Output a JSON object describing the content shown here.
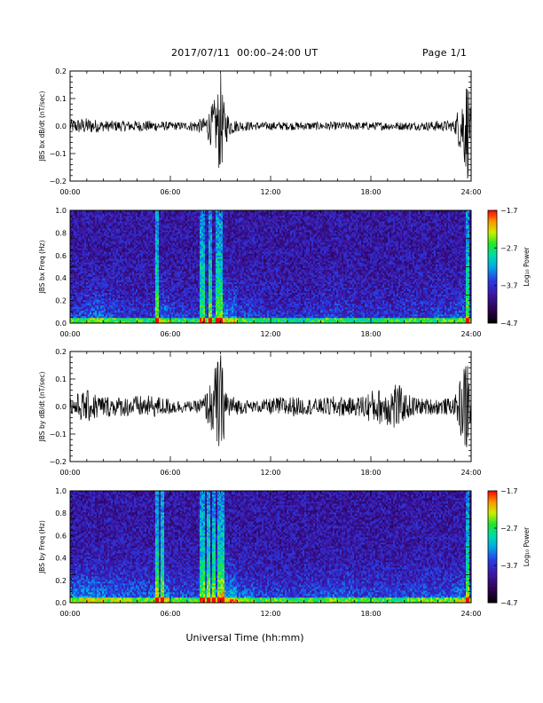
{
  "header": {
    "title": "2017/07/11  00:00–24:00 UT",
    "page": "Page 1/1"
  },
  "chart_data": [
    {
      "type": "line",
      "ylabel": "JBS bx dB/dt (nT/sec)",
      "xlabel": "",
      "xlim": [
        0,
        24
      ],
      "ylim": [
        -0.2,
        0.2
      ],
      "ytick_labels": [
        "0.2",
        "0.1",
        "0.0",
        "−0.1",
        "−0.2"
      ],
      "ytick_values": [
        0.2,
        0.1,
        0.0,
        -0.1,
        -0.2
      ],
      "xtick_labels": [
        "00:00",
        "06:00",
        "12:00",
        "18:00",
        "24:00"
      ],
      "x": [
        0,
        1,
        2,
        3,
        4,
        5,
        6,
        7,
        8,
        8.5,
        8.8,
        9,
        9.2,
        9.5,
        10,
        11,
        12,
        13,
        14,
        15,
        16,
        17,
        18,
        19,
        20,
        21,
        22,
        23,
        23.8,
        24
      ],
      "envelope": [
        0.025,
        0.03,
        0.02,
        0.02,
        0.02,
        0.02,
        0.015,
        0.015,
        0.03,
        0.08,
        0.12,
        0.2,
        0.09,
        0.04,
        0.02,
        0.015,
        0.015,
        0.015,
        0.015,
        0.015,
        0.015,
        0.015,
        0.015,
        0.015,
        0.015,
        0.015,
        0.02,
        0.02,
        0.2,
        0.02
      ]
    },
    {
      "type": "heatmap",
      "ylabel": "JBS bx Freq (Hz)",
      "xlabel": "",
      "xlim": [
        0,
        24
      ],
      "ylim": [
        0.0,
        1.0
      ],
      "ytick_labels": [
        "1.0",
        "0.8",
        "0.6",
        "0.4",
        "0.2",
        "0.0"
      ],
      "ytick_values": [
        1.0,
        0.8,
        0.6,
        0.4,
        0.2,
        0.0
      ],
      "xtick_labels": [
        "00:00",
        "06:00",
        "12:00",
        "18:00",
        "24:00"
      ],
      "colorbar": {
        "label": "Log₁₀ Power",
        "tick_labels": [
          "−1.7",
          "−2.7",
          "−3.7",
          "−4.7"
        ],
        "range": [
          -4.7,
          -1.7
        ]
      },
      "bright_columns": [
        5.2,
        7.9,
        8.4,
        8.8,
        9.0,
        23.8
      ],
      "activity": [
        0.3,
        0.45,
        0.3,
        0.25,
        0.2,
        0.45,
        0.25,
        0.2,
        0.4,
        0.55,
        0.3,
        0.2,
        0.2,
        0.15,
        0.2,
        0.3,
        0.25,
        0.2,
        0.2,
        0.2,
        0.25,
        0.25,
        0.3,
        0.4,
        0.3
      ]
    },
    {
      "type": "line",
      "ylabel": "JBS by dB/dt (nT/sec)",
      "xlabel": "",
      "xlim": [
        0,
        24
      ],
      "ylim": [
        -0.2,
        0.2
      ],
      "ytick_labels": [
        "0.2",
        "0.1",
        "0.0",
        "−0.1",
        "−0.2"
      ],
      "ytick_values": [
        0.2,
        0.1,
        0.0,
        -0.1,
        -0.2
      ],
      "xtick_labels": [
        "00:00",
        "06:00",
        "12:00",
        "18:00",
        "24:00"
      ],
      "x": [
        0,
        1,
        2,
        3,
        4,
        5,
        6,
        7,
        7.5,
        8,
        8.5,
        8.8,
        9,
        9.2,
        9.5,
        10,
        11,
        12,
        13,
        14,
        15,
        16,
        17,
        18,
        19,
        19.5,
        20,
        21,
        22,
        23,
        23.8,
        24
      ],
      "envelope": [
        0.04,
        0.06,
        0.04,
        0.035,
        0.04,
        0.04,
        0.03,
        0.02,
        0.02,
        0.04,
        0.1,
        0.18,
        0.2,
        0.12,
        0.05,
        0.03,
        0.02,
        0.03,
        0.04,
        0.03,
        0.03,
        0.04,
        0.03,
        0.06,
        0.07,
        0.1,
        0.05,
        0.03,
        0.03,
        0.03,
        0.2,
        0.03
      ]
    },
    {
      "type": "heatmap",
      "ylabel": "JBS by Freq (Hz)",
      "xlabel": "Universal Time (hh:mm)",
      "xlim": [
        0,
        24
      ],
      "ylim": [
        0.0,
        1.0
      ],
      "ytick_labels": [
        "1.0",
        "0.8",
        "0.6",
        "0.4",
        "0.2",
        "0.0"
      ],
      "ytick_values": [
        1.0,
        0.8,
        0.6,
        0.4,
        0.2,
        0.0
      ],
      "xtick_labels": [
        "00:00",
        "06:00",
        "12:00",
        "18:00",
        "24:00"
      ],
      "colorbar": {
        "label": "Log₁₀ Power",
        "tick_labels": [
          "−1.7",
          "−2.7",
          "−3.7",
          "−4.7"
        ],
        "range": [
          -4.7,
          -1.7
        ]
      },
      "bright_columns": [
        5.2,
        5.5,
        7.9,
        8.3,
        8.6,
        8.9,
        9.1,
        23.8
      ],
      "activity": [
        0.5,
        0.55,
        0.45,
        0.4,
        0.4,
        0.55,
        0.35,
        0.3,
        0.55,
        0.7,
        0.4,
        0.3,
        0.3,
        0.25,
        0.3,
        0.35,
        0.35,
        0.3,
        0.3,
        0.3,
        0.3,
        0.35,
        0.35,
        0.45,
        0.4
      ]
    }
  ]
}
